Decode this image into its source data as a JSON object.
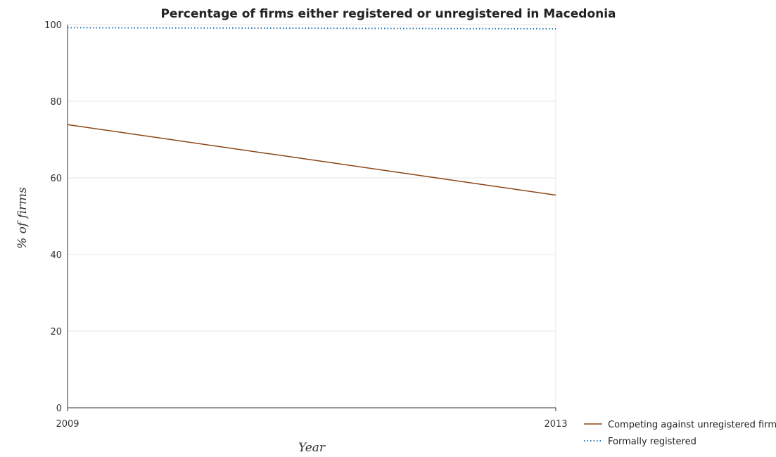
{
  "chart_data": {
    "type": "line",
    "title": "Percentage of firms either registered or unregistered in Macedonia",
    "xlabel": "Year",
    "ylabel": "% of firms",
    "x": [
      "2009",
      "2013"
    ],
    "ylim": [
      0,
      100
    ],
    "yticks": [
      "0",
      "20",
      "40",
      "60",
      "80",
      "100"
    ],
    "grid": true,
    "legend_position": "bottom-right",
    "series": [
      {
        "name": "Competing against unregistered firms",
        "values": [
          73.9,
          55.5
        ],
        "color": "#8B4513",
        "dash": "solid"
      },
      {
        "name": "Formally registered",
        "values": [
          99.2,
          98.9
        ],
        "color": "#1F77B4",
        "dash": "dotted"
      }
    ]
  }
}
